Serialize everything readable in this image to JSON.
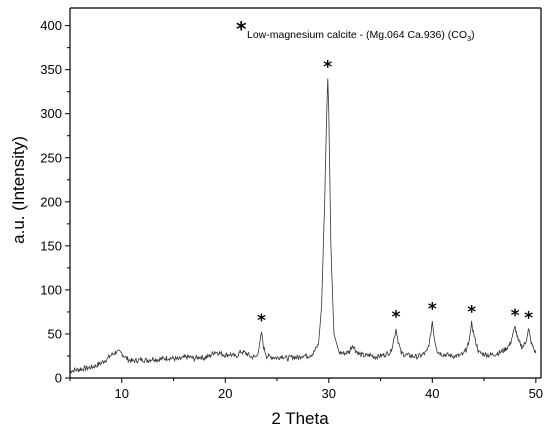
{
  "chart_data": {
    "type": "line",
    "title": "",
    "xlabel": "2 Theta",
    "ylabel": "a.u. (Intensity)",
    "xlim": [
      5,
      50.5
    ],
    "ylim": [
      0,
      420
    ],
    "xticks": [
      10,
      20,
      30,
      40,
      50
    ],
    "yticks": [
      0,
      50,
      100,
      150,
      200,
      250,
      300,
      350,
      400
    ],
    "legend": {
      "marker": "*",
      "text_main": "Low-magnesium calcite - (Mg.064 Ca.936) (CO",
      "text_sub": "3",
      "text_end": ")",
      "placement": "top-right"
    },
    "peak_marker": "*",
    "peaks": [
      {
        "x": 23.5,
        "y": 52
      },
      {
        "x": 29.9,
        "y": 340
      },
      {
        "x": 36.5,
        "y": 56
      },
      {
        "x": 40.0,
        "y": 65
      },
      {
        "x": 43.8,
        "y": 62
      },
      {
        "x": 48.0,
        "y": 58
      },
      {
        "x": 49.3,
        "y": 55
      }
    ],
    "series": [
      {
        "x": [
          5,
          5.5,
          6,
          6.5,
          7,
          7.5,
          8,
          8.5,
          9,
          9.5,
          10,
          10.5,
          11,
          11.5,
          12,
          12.5,
          13,
          13.5,
          14,
          14.5,
          15,
          15.5,
          16,
          16.5,
          17,
          17.5,
          18,
          18.5,
          19,
          19.5,
          20,
          20.5,
          21,
          21.5,
          22,
          22.5,
          23,
          23.3,
          23.5,
          23.7,
          24,
          24.5,
          25,
          25.5,
          26,
          26.5,
          27,
          27.5,
          28,
          28.5,
          29,
          29.3,
          29.6,
          29.8,
          29.9,
          30.0,
          30.2,
          30.5,
          31,
          31.5,
          32,
          32.3,
          32.6,
          33,
          33.5,
          34,
          34.5,
          35,
          35.5,
          36,
          36.3,
          36.5,
          36.7,
          37,
          37.5,
          38,
          38.5,
          39,
          39.5,
          39.8,
          40.0,
          40.2,
          40.5,
          41,
          41.5,
          42,
          42.5,
          43,
          43.5,
          43.8,
          44.1,
          44.5,
          45,
          45.5,
          46,
          46.5,
          47,
          47.5,
          47.8,
          48.0,
          48.3,
          48.7,
          49.0,
          49.3,
          49.6,
          50.0
        ],
        "y": [
          8,
          9,
          10,
          11,
          12,
          14,
          17,
          21,
          26,
          30,
          28,
          22,
          19,
          20,
          21,
          20,
          22,
          21,
          22,
          23,
          22,
          21,
          23,
          24,
          22,
          24,
          23,
          25,
          30,
          28,
          26,
          27,
          24,
          30,
          28,
          24,
          24,
          35,
          52,
          35,
          25,
          24,
          23,
          25,
          22,
          24,
          23,
          26,
          25,
          28,
          38,
          80,
          200,
          300,
          340,
          300,
          150,
          50,
          29,
          28,
          30,
          38,
          31,
          27,
          25,
          26,
          24,
          25,
          27,
          30,
          45,
          56,
          42,
          28,
          26,
          25,
          24,
          26,
          30,
          45,
          65,
          45,
          30,
          27,
          26,
          25,
          25,
          27,
          38,
          62,
          45,
          29,
          27,
          26,
          27,
          29,
          32,
          38,
          50,
          58,
          42,
          35,
          40,
          55,
          38,
          28
        ]
      }
    ]
  }
}
